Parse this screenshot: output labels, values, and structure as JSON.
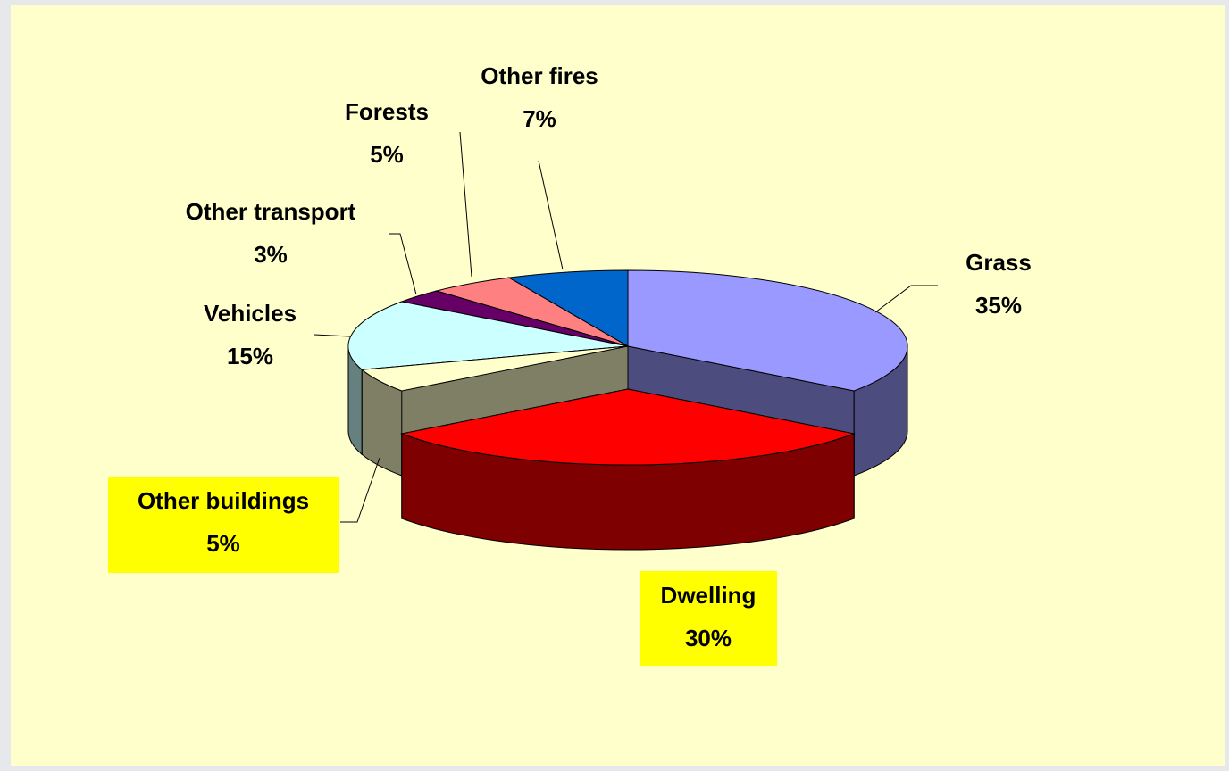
{
  "chart_data": {
    "type": "pie3d",
    "categories": [
      "Grass",
      "Dwelling",
      "Other buildings",
      "Vehicles",
      "Other transport",
      "Forests",
      "Other fires"
    ],
    "values": [
      35,
      30,
      5,
      15,
      3,
      5,
      7
    ],
    "value_labels": [
      "35%",
      "30%",
      "5%",
      "15%",
      "3%",
      "5%",
      "7%"
    ],
    "colors": [
      "#9999ff",
      "#ff0000",
      "#ffffcc",
      "#ccffff",
      "#660066",
      "#ff8080",
      "#0066cc"
    ],
    "explode": [
      false,
      true,
      false,
      false,
      false,
      false,
      false
    ],
    "highlight": [
      false,
      true,
      true,
      false,
      false,
      false,
      false
    ]
  }
}
